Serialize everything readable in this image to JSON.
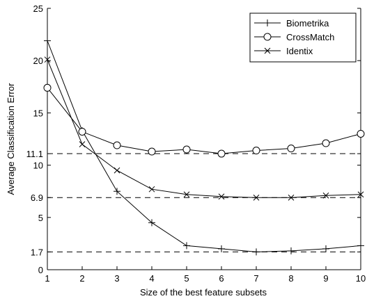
{
  "chart_data": {
    "type": "line",
    "title": "",
    "xlabel": "Size of the best feature subsets",
    "ylabel": "Average Classification Error",
    "xlim": [
      1,
      10
    ],
    "ylim": [
      0,
      25
    ],
    "x": [
      1,
      2,
      3,
      4,
      5,
      6,
      7,
      8,
      9,
      10
    ],
    "xticks": [
      "1",
      "2",
      "3",
      "4",
      "5",
      "6",
      "7",
      "8",
      "9",
      "10"
    ],
    "yticks": [
      {
        "value": 0,
        "label": "0"
      },
      {
        "value": 1.7,
        "label": "1.7"
      },
      {
        "value": 5,
        "label": "5"
      },
      {
        "value": 6.9,
        "label": "6.9"
      },
      {
        "value": 10,
        "label": "10"
      },
      {
        "value": 11.1,
        "label": "11.1"
      },
      {
        "value": 15,
        "label": "15"
      },
      {
        "value": 20,
        "label": "20"
      },
      {
        "value": 25,
        "label": "25"
      }
    ],
    "reference_lines": [
      11.1,
      6.9,
      1.7
    ],
    "grid": false,
    "legend_position": "top-right",
    "series": [
      {
        "name": "Biometrika",
        "marker": "plus",
        "values": [
          21.9,
          13.3,
          7.5,
          4.5,
          2.3,
          2.0,
          1.7,
          1.8,
          2.0,
          2.3
        ]
      },
      {
        "name": "CrossMatch",
        "marker": "circle",
        "values": [
          17.4,
          13.2,
          11.9,
          11.3,
          11.5,
          11.1,
          11.4,
          11.6,
          12.1,
          13.0
        ]
      },
      {
        "name": "Identix",
        "marker": "x",
        "values": [
          20.1,
          12.0,
          9.5,
          7.7,
          7.2,
          7.0,
          6.9,
          6.9,
          7.1,
          7.2
        ]
      }
    ]
  }
}
